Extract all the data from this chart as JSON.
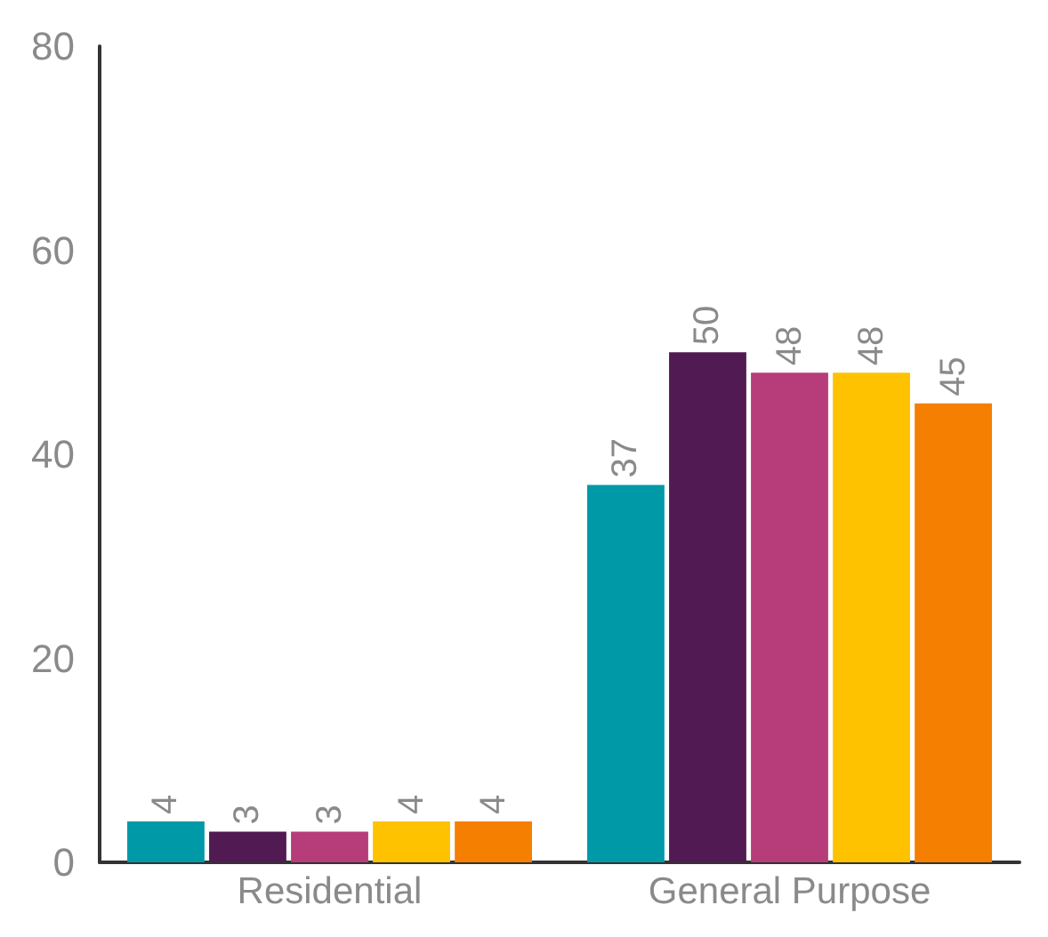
{
  "chart_data": {
    "type": "bar",
    "categories": [
      "Residential",
      "General Purpose"
    ],
    "series": [
      {
        "color": "#0099a8",
        "values": [
          4,
          37
        ]
      },
      {
        "color": "#521a52",
        "values": [
          3,
          50
        ]
      },
      {
        "color": "#b63d7a",
        "values": [
          3,
          48
        ]
      },
      {
        "color": "#ffc200",
        "values": [
          4,
          48
        ]
      },
      {
        "color": "#f57f00",
        "values": [
          4,
          45
        ]
      }
    ],
    "ylim": [
      0,
      80
    ],
    "yticks": [
      0,
      20,
      40,
      60,
      80
    ],
    "data_labels": true,
    "grid": false
  }
}
